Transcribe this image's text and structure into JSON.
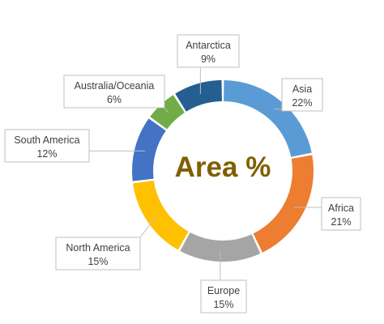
{
  "chart_data": {
    "type": "pie",
    "variant": "doughnut",
    "title": "Area %",
    "title_color": "#7f6000",
    "slices": [
      {
        "label": "Asia",
        "value": 22,
        "value_label": "22%",
        "color": "#5b9bd5"
      },
      {
        "label": "Africa",
        "value": 21,
        "value_label": "21%",
        "color": "#ed7d31"
      },
      {
        "label": "Europe",
        "value": 15,
        "value_label": "15%",
        "color": "#a5a5a5"
      },
      {
        "label": "North America",
        "value": 15,
        "value_label": "15%",
        "color": "#ffc000"
      },
      {
        "label": "South America",
        "value": 12,
        "value_label": "12%",
        "color": "#4472c4"
      },
      {
        "label": "Australia/Oceania",
        "value": 6,
        "value_label": "6%",
        "color": "#70ad47"
      },
      {
        "label": "Antarctica",
        "value": 9,
        "value_label": "9%",
        "color": "#255e91"
      }
    ]
  }
}
